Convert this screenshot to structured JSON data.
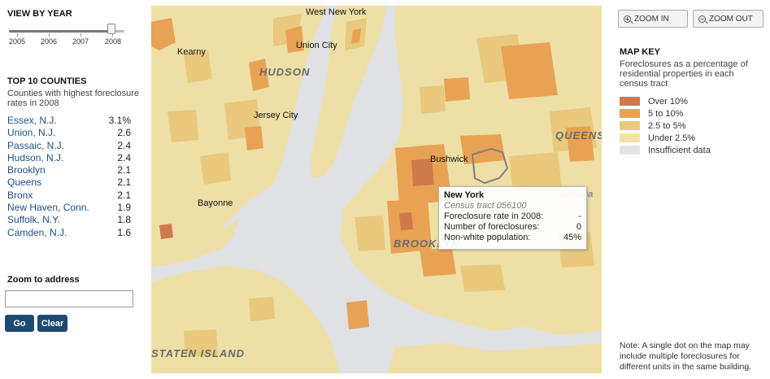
{
  "year_section": {
    "title": "VIEW BY YEAR",
    "years": [
      "2005",
      "2006",
      "2007",
      "2008"
    ],
    "selected_year": "2008"
  },
  "top10": {
    "title": "TOP 10 COUNTIES",
    "subtitle": "Counties with highest foreclosure rates in 2008",
    "counties": [
      {
        "name": "Essex, N.J.",
        "value": "3.1%"
      },
      {
        "name": "Union, N.J.",
        "value": "2.6"
      },
      {
        "name": "Passaic, N.J.",
        "value": "2.4"
      },
      {
        "name": "Hudson, N.J.",
        "value": "2.4"
      },
      {
        "name": "Brooklyn",
        "value": "2.1"
      },
      {
        "name": "Queens",
        "value": "2.1"
      },
      {
        "name": "Bronx",
        "value": "2.1"
      },
      {
        "name": "New Haven, Conn.",
        "value": "1.9"
      },
      {
        "name": "Suffolk, N.Y.",
        "value": "1.8"
      },
      {
        "name": "Camden, N.J.",
        "value": "1.6"
      }
    ]
  },
  "address": {
    "title": "Zoom to address",
    "input_value": "",
    "go_label": "Go",
    "clear_label": "Clear"
  },
  "map": {
    "place_labels": [
      "West New York",
      "Kearny",
      "Union City",
      "Jersey City",
      "Bayonne",
      "Bushwick"
    ],
    "borough_labels": [
      "HUDSON",
      "QUEENS",
      "BROOKLYN",
      "STATEN ISLAND",
      "Jamaica"
    ]
  },
  "tooltip": {
    "title": "New York",
    "subtitle": "Census tract 056100",
    "rows": [
      {
        "label": "Foreclosure rate in 2008:",
        "value": "-"
      },
      {
        "label": "Number of foreclosures:",
        "value": "0"
      },
      {
        "label": "Non-white population:",
        "value": "45%"
      }
    ]
  },
  "controls": {
    "zoom_in": "ZOOM IN",
    "zoom_out": "ZOOM OUT"
  },
  "map_key": {
    "title": "MAP KEY",
    "subtitle": "Foreclosures as a percentage of residential properties in each census tract",
    "items": [
      {
        "label": "Over 10%",
        "color": "#cf7a4b"
      },
      {
        "label": "5 to 10%",
        "color": "#e8a254"
      },
      {
        "label": "2.5 to 5%",
        "color": "#e8c97d"
      },
      {
        "label": "Under 2.5%",
        "color": "#f0e2ab"
      },
      {
        "label": "Insufficient data",
        "color": "#e2e3e5"
      }
    ]
  },
  "note": "Note: A single dot on the map may include multiple foreclosures for different units in the same building."
}
